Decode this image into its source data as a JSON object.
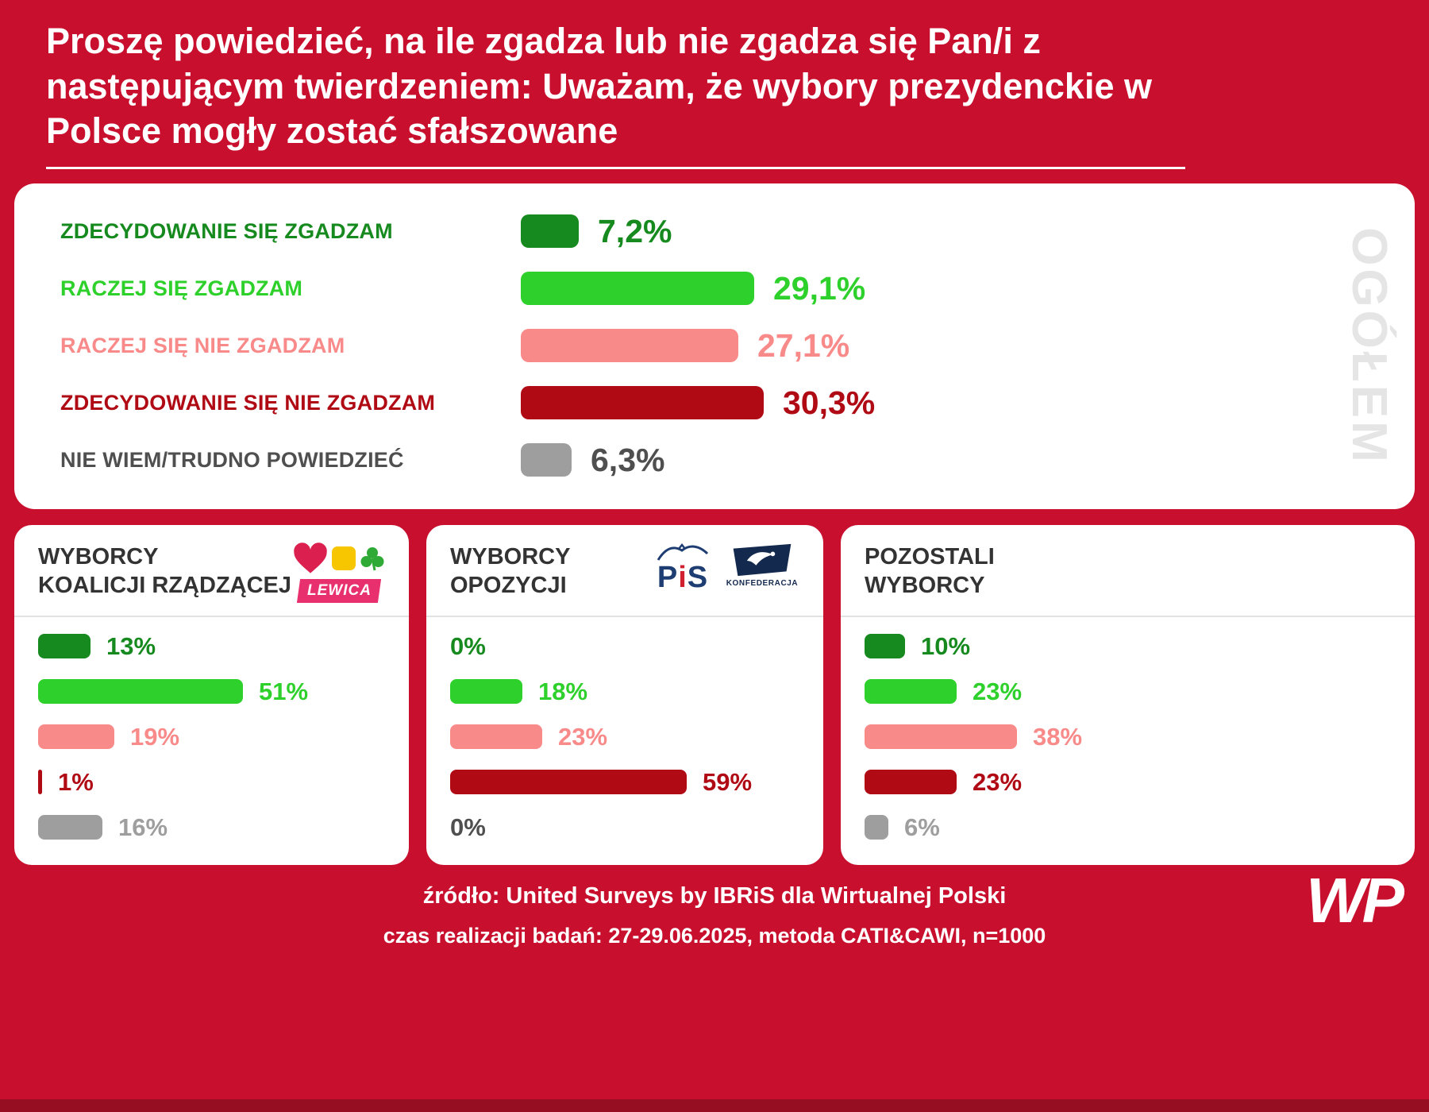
{
  "title": "Proszę powiedzieć, na ile zgadza lub nie zgadza się Pan/i z następującym twierdzeniem: Uważam, że wybory prezydenckie w Polsce mogły zostać sfałszowane",
  "overall": {
    "watermark": "OGÓŁEM",
    "rows": [
      {
        "label": "ZDECYDOWANIE SIĘ ZGADZAM",
        "pct": "7,2%",
        "value": 7.2,
        "color": "darkGreen"
      },
      {
        "label": "RACZEJ SIĘ ZGADZAM",
        "pct": "29,1%",
        "value": 29.1,
        "color": "green"
      },
      {
        "label": "RACZEJ SIĘ NIE ZGADZAM",
        "pct": "27,1%",
        "value": 27.1,
        "color": "salmon"
      },
      {
        "label": "ZDECYDOWANIE SIĘ NIE ZGADZAM",
        "pct": "30,3%",
        "value": 30.3,
        "color": "darkRed"
      },
      {
        "label": "NIE WIEM/TRUDNO POWIEDZIEĆ",
        "pct": "6,3%",
        "value": 6.3,
        "color": "gray",
        "labelColor": "darkGray",
        "pctColor": "darkGray"
      }
    ]
  },
  "groups": [
    {
      "title1": "WYBORCY",
      "title2": "KOALICJI RZĄDZĄCEJ",
      "rows": [
        {
          "pct": "13%",
          "value": 13,
          "color": "darkGreen"
        },
        {
          "pct": "51%",
          "value": 51,
          "color": "green"
        },
        {
          "pct": "19%",
          "value": 19,
          "color": "salmon"
        },
        {
          "pct": "1%",
          "value": 1,
          "color": "darkRed"
        },
        {
          "pct": "16%",
          "value": 16,
          "color": "gray"
        }
      ]
    },
    {
      "title1": "WYBORCY",
      "title2": "OPOZYCJI",
      "rows": [
        {
          "pct": "0%",
          "value": 0,
          "color": "darkGreen"
        },
        {
          "pct": "18%",
          "value": 18,
          "color": "green"
        },
        {
          "pct": "23%",
          "value": 23,
          "color": "salmon"
        },
        {
          "pct": "59%",
          "value": 59,
          "color": "darkRed"
        },
        {
          "pct": "0%",
          "value": 0,
          "color": "gray",
          "pctColor": "darkGray"
        }
      ]
    },
    {
      "title1": "POZOSTALI",
      "title2": "WYBORCY",
      "rows": [
        {
          "pct": "10%",
          "value": 10,
          "color": "darkGreen"
        },
        {
          "pct": "23%",
          "value": 23,
          "color": "green"
        },
        {
          "pct": "38%",
          "value": 38,
          "color": "salmon"
        },
        {
          "pct": "23%",
          "value": 23,
          "color": "darkRed"
        },
        {
          "pct": "6%",
          "value": 6,
          "color": "gray"
        }
      ]
    }
  ],
  "logos": {
    "lewica": "LEWICA",
    "pis_p": "P",
    "pis_i": "i",
    "pis_s": "S",
    "konfederacja": "KONFEDERACJA",
    "wp": "WP"
  },
  "footer": {
    "line1": "źródło: United Surveys by IBRiS dla Wirtualnej Polski",
    "line2": "czas realizacji badań: 27-29.06.2025, metoda CATI&CAWI, n=1000"
  },
  "colors": {
    "background": "#c8102e",
    "bottomStrip": "#960e21",
    "darkGreen": "#168a1e",
    "green": "#2ed02b",
    "salmon": "#f98a8a",
    "darkRed": "#b00b15",
    "gray": "#9e9e9e",
    "darkGray": "#4f4f4f",
    "watermark": "#e5e5e5",
    "cardTitle": "#333333",
    "lewicaPink": "#e8306e",
    "heartRed": "#db1f4e",
    "p2050Yellow": "#f7c600",
    "cloverGreen": "#2faa36",
    "pisNavy": "#1d3d73",
    "pisRed": "#d01f2f",
    "konfNavy": "#14294e"
  },
  "chart_data": {
    "type": "bar",
    "orientation": "horizontal",
    "title": "Proszę powiedzieć, na ile zgadza lub nie zgadza się Pan/i z następującym twierdzeniem: Uważam, że wybory prezydenckie w Polsce mogły zostać sfałszowane",
    "unit": "%",
    "categories": [
      "Zdecydowanie się zgadzam",
      "Raczej się zgadzam",
      "Raczej się nie zgadzam",
      "Zdecydowanie się nie zgadzam",
      "Nie wiem/trudno powiedzieć"
    ],
    "series": [
      {
        "name": "Ogółem",
        "values": [
          7.2,
          29.1,
          27.1,
          30.3,
          6.3
        ]
      },
      {
        "name": "Wyborcy koalicji rządzącej",
        "values": [
          13,
          51,
          19,
          1,
          16
        ]
      },
      {
        "name": "Wyborcy opozycji",
        "values": [
          0,
          18,
          23,
          59,
          0
        ]
      },
      {
        "name": "Pozostali wyborcy",
        "values": [
          10,
          23,
          38,
          23,
          6
        ]
      }
    ],
    "value_labels_on": true,
    "grid": false,
    "legend_position": "none",
    "source": "United Surveys by IBRiS dla Wirtualnej Polski",
    "fieldwork": "27-29.06.2025, metoda CATI&CAWI, n=1000"
  }
}
